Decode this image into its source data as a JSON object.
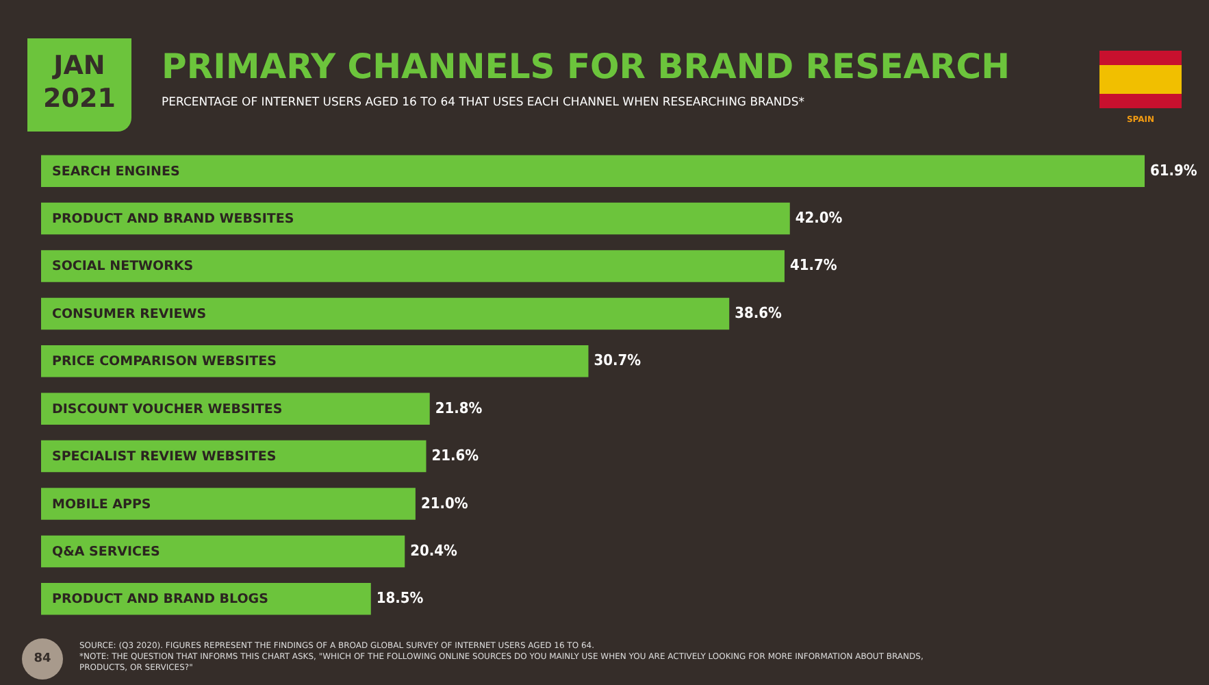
{
  "chart_data": {
    "type": "bar",
    "orientation": "horizontal",
    "title": "PRIMARY CHANNELS FOR BRAND RESEARCH",
    "subtitle": "PERCENTAGE OF INTERNET USERS AGED 16 TO 64 THAT USES EACH CHANNEL WHEN RESEARCHING BRANDS*",
    "categories": [
      "SEARCH ENGINES",
      "PRODUCT AND BRAND WEBSITES",
      "SOCIAL NETWORKS",
      "CONSUMER REVIEWS",
      "PRICE COMPARISON WEBSITES",
      "DISCOUNT VOUCHER WEBSITES",
      "SPECIALIST REVIEW WEBSITES",
      "MOBILE APPS",
      "Q&A SERVICES",
      "PRODUCT AND BRAND BLOGS"
    ],
    "values": [
      61.9,
      42.0,
      41.7,
      38.6,
      30.7,
      21.8,
      21.6,
      21.0,
      20.4,
      18.5
    ],
    "value_labels": [
      "61.9%",
      "42.0%",
      "41.7%",
      "38.6%",
      "30.7%",
      "21.8%",
      "21.6%",
      "21.0%",
      "20.4%",
      "18.5%"
    ],
    "color": "#6cc43c",
    "annotations": [
      "JAN 2021",
      "SPAIN",
      "84",
      "SOURCE: (Q3 2020). FIGURES REPRESENT THE FINDINGS OF A BROAD GLOBAL SURVEY OF INTERNET USERS AGED 16 TO 64.",
      "*NOTE: THE QUESTION THAT INFORMS THIS CHART ASKS, \"WHICH OF THE FOLLOWING ONLINE SOURCES DO YOU MAINLY USE WHEN YOU ARE ACTIVELY LOOKING FOR MORE INFORMATION ABOUT BRANDS, PRODUCTS, OR SERVICES?\""
    ]
  }
}
